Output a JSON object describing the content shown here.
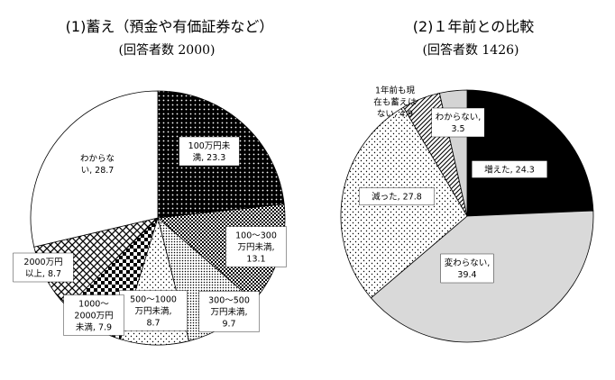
{
  "chart_data": [
    {
      "type": "pie",
      "title": "(1)蓄え（預金や有価証券など）",
      "subtitle": "(回答者数 2000)",
      "slices": [
        {
          "label_lines": [
            "100万円未",
            "満, 23.3"
          ],
          "value": 23.3,
          "pattern": "dark-dots"
        },
        {
          "label_lines": [
            "100～300",
            "万円未満,",
            "13.1"
          ],
          "value": 13.1,
          "pattern": "checker-small"
        },
        {
          "label_lines": [
            "300～500",
            "万円未満,",
            "9.7"
          ],
          "value": 9.7,
          "pattern": "dense-dots"
        },
        {
          "label_lines": [
            "500～1000",
            "万円未満,",
            "8.7"
          ],
          "value": 8.7,
          "pattern": "sparse-dots"
        },
        {
          "label_lines": [
            "1000～",
            "2000万円",
            "未満, 7.9"
          ],
          "value": 7.9,
          "pattern": "checker-large"
        },
        {
          "label_lines": [
            "2000万円",
            "以上, 8.7"
          ],
          "value": 8.7,
          "pattern": "diamond-lattice"
        },
        {
          "label_lines": [
            "わからな",
            "い, 28.7"
          ],
          "value": 28.7,
          "pattern": "white"
        }
      ]
    },
    {
      "type": "pie",
      "title": "(2)１年前との比較",
      "subtitle": "(回答者数 1426)",
      "slices": [
        {
          "label_lines": [
            "増えた, 24.3"
          ],
          "value": 24.3,
          "pattern": "black"
        },
        {
          "label_lines": [
            "変わらない,",
            "39.4"
          ],
          "value": 39.4,
          "pattern": "light-gray"
        },
        {
          "label_lines": [
            "減った, 27.8"
          ],
          "value": 27.8,
          "pattern": "sparse-dots"
        },
        {
          "label_lines": [
            "1年前も現",
            "在も蓄えは",
            "ない, 4.9"
          ],
          "value": 4.9,
          "pattern": "diagonal-hatch"
        },
        {
          "label_lines": [
            "わからない,",
            "3.5"
          ],
          "value": 3.5,
          "pattern": "light-gray2"
        }
      ]
    }
  ]
}
